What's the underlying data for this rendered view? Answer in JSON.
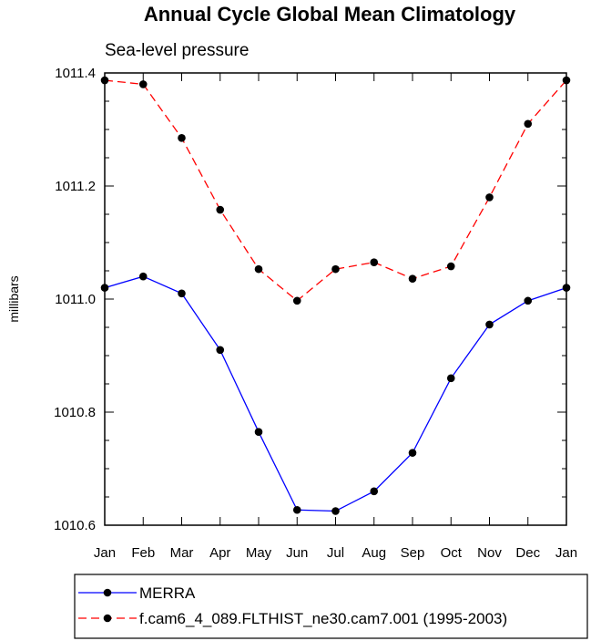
{
  "chart_data": {
    "type": "line",
    "title": "Annual Cycle Global Mean Climatology",
    "subtitle": "Sea-level pressure",
    "xlabel": "",
    "ylabel": "millibars",
    "ylim": [
      1010.6,
      1011.4
    ],
    "y_ticks": [
      1010.6,
      1010.8,
      1011.0,
      1011.2,
      1011.4
    ],
    "y_tick_labels": [
      "1010.6",
      "1010.8",
      "1011.0",
      "1011.2",
      "1011.4"
    ],
    "categories": [
      "Jan",
      "Feb",
      "Mar",
      "Apr",
      "May",
      "Jun",
      "Jul",
      "Aug",
      "Sep",
      "Oct",
      "Nov",
      "Dec",
      "Jan"
    ],
    "grid": false,
    "legend_position": "bottom",
    "series": [
      {
        "name": "MERRA",
        "color": "#0000ff",
        "dash": "solid",
        "values": [
          1011.02,
          1011.04,
          1011.01,
          1010.91,
          1010.765,
          1010.627,
          1010.625,
          1010.66,
          1010.728,
          1010.86,
          1010.955,
          1010.997,
          1011.02
        ]
      },
      {
        "name": "f.cam6_4_089.FLTHIST_ne30.cam7.001 (1995-2003)",
        "color": "#ff0000",
        "dash": "dashed",
        "values": [
          1011.387,
          1011.38,
          1011.285,
          1011.158,
          1011.053,
          1010.997,
          1011.053,
          1011.065,
          1011.036,
          1011.058,
          1011.18,
          1011.31,
          1011.387
        ]
      }
    ]
  }
}
